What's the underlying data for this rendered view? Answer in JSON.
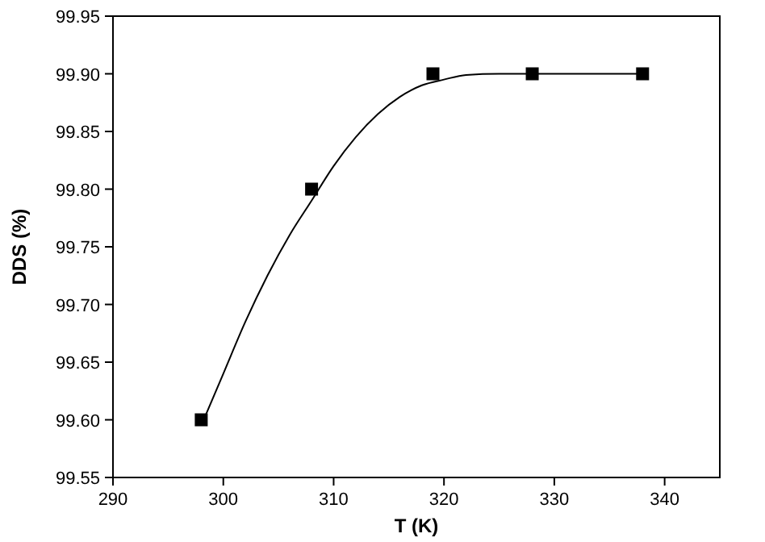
{
  "chart_data": {
    "type": "scatter",
    "xlabel": "T (K)",
    "ylabel": "DDS (%)",
    "xlim": [
      290,
      345
    ],
    "xticks": [
      290,
      300,
      310,
      320,
      330,
      340
    ],
    "ylim": [
      99.55,
      99.95
    ],
    "yticks": [
      {
        "value": 99.55,
        "label": "99.55"
      },
      {
        "value": 99.6,
        "label": "99.60"
      },
      {
        "value": 99.65,
        "label": "99.65"
      },
      {
        "value": 99.7,
        "label": "99.70"
      },
      {
        "value": 99.75,
        "label": "99.75"
      },
      {
        "value": 99.8,
        "label": "99.80"
      },
      {
        "value": 99.85,
        "label": "99.85"
      },
      {
        "value": 99.9,
        "label": "99.90"
      },
      {
        "value": 99.95,
        "label": "99.95"
      }
    ],
    "grid": false,
    "series": [
      {
        "type": "line",
        "color": "#000000",
        "marker": "none",
        "line_style": "solid",
        "x": [
          298,
          300,
          302,
          304,
          306,
          308,
          310,
          312,
          314,
          316,
          318,
          320,
          322,
          325,
          338
        ],
        "values": [
          99.595,
          99.64,
          99.685,
          99.725,
          99.76,
          99.79,
          99.82,
          99.845,
          99.865,
          99.88,
          99.89,
          99.895,
          99.899,
          99.9,
          99.9
        ]
      },
      {
        "color": "#000000",
        "marker": "square",
        "x": [
          298,
          308,
          319,
          328,
          338
        ],
        "values": [
          99.6,
          99.8,
          99.9,
          99.9,
          99.9
        ]
      }
    ]
  }
}
